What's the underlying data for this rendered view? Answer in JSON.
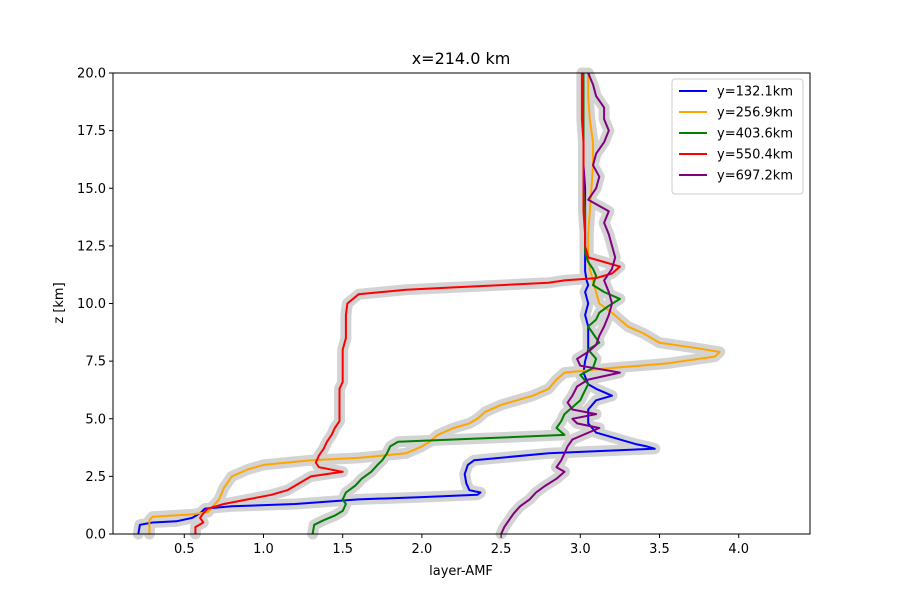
{
  "chart_data": {
    "type": "line",
    "title": "x=214.0 km",
    "xlabel": "layer-AMF",
    "ylabel": "z [km]",
    "xlim": [
      0.05,
      4.45
    ],
    "ylim": [
      0,
      20
    ],
    "xticks": [
      0.5,
      1.0,
      1.5,
      2.0,
      2.5,
      3.0,
      3.5,
      4.0
    ],
    "xtick_labels": [
      "0.5",
      "1.0",
      "1.5",
      "2.0",
      "2.5",
      "3.0",
      "3.5",
      "4.0"
    ],
    "yticks": [
      0,
      2.5,
      5,
      7.5,
      10,
      12.5,
      15,
      17.5,
      20
    ],
    "ytick_labels": [
      "0.0",
      "2.5",
      "5.0",
      "7.5",
      "10.0",
      "12.5",
      "15.0",
      "17.5",
      "20.0"
    ],
    "grid": false,
    "legend_position": "top-right",
    "band_color": "#d3d3d3",
    "series": [
      {
        "name": "y=132.1km",
        "color": "#0000ff",
        "points": [
          [
            0.21,
            0
          ],
          [
            0.22,
            0.4
          ],
          [
            0.3,
            0.5
          ],
          [
            0.45,
            0.55
          ],
          [
            0.55,
            0.7
          ],
          [
            0.6,
            0.9
          ],
          [
            0.63,
            1.1
          ],
          [
            0.8,
            1.2
          ],
          [
            1.2,
            1.3
          ],
          [
            1.6,
            1.5
          ],
          [
            2.0,
            1.6
          ],
          [
            2.35,
            1.7
          ],
          [
            2.37,
            1.8
          ],
          [
            2.3,
            1.9
          ],
          [
            2.28,
            2.2
          ],
          [
            2.27,
            2.6
          ],
          [
            2.29,
            3.0
          ],
          [
            2.33,
            3.2
          ],
          [
            2.8,
            3.5
          ],
          [
            3.47,
            3.7
          ],
          [
            3.42,
            3.8
          ],
          [
            3.35,
            3.9
          ],
          [
            3.3,
            4.0
          ],
          [
            3.2,
            4.2
          ],
          [
            3.1,
            4.4
          ],
          [
            3.05,
            4.8
          ],
          [
            3.05,
            5.4
          ],
          [
            3.1,
            5.8
          ],
          [
            3.2,
            6.0
          ],
          [
            3.1,
            6.3
          ],
          [
            3.05,
            6.5
          ],
          [
            3.02,
            7.0
          ],
          [
            3.03,
            7.5
          ],
          [
            3.05,
            8.0
          ],
          [
            3.05,
            8.5
          ],
          [
            3.05,
            9.0
          ],
          [
            3.03,
            9.5
          ],
          [
            3.05,
            10.0
          ],
          [
            3.03,
            10.5
          ],
          [
            3.05,
            10.8
          ],
          [
            3.04,
            11.0
          ],
          [
            3.03,
            11.4
          ],
          [
            3.03,
            12.0
          ],
          [
            3.03,
            13.0
          ],
          [
            3.03,
            14.0
          ],
          [
            3.03,
            15.0
          ],
          [
            3.02,
            16.0
          ],
          [
            3.02,
            17.0
          ],
          [
            3.02,
            18.0
          ],
          [
            3.02,
            19.0
          ],
          [
            3.02,
            20.0
          ]
        ]
      },
      {
        "name": "y=256.9km",
        "color": "#ffa500",
        "points": [
          [
            0.28,
            0
          ],
          [
            0.28,
            0.6
          ],
          [
            0.3,
            0.75
          ],
          [
            0.55,
            0.85
          ],
          [
            0.65,
            0.95
          ],
          [
            0.68,
            1.2
          ],
          [
            0.72,
            1.5
          ],
          [
            0.75,
            2.0
          ],
          [
            0.8,
            2.5
          ],
          [
            0.9,
            2.8
          ],
          [
            1.0,
            3.0
          ],
          [
            1.3,
            3.2
          ],
          [
            1.6,
            3.3
          ],
          [
            1.9,
            3.5
          ],
          [
            2.0,
            3.8
          ],
          [
            2.05,
            4.0
          ],
          [
            2.1,
            4.3
          ],
          [
            2.2,
            4.6
          ],
          [
            2.3,
            4.8
          ],
          [
            2.35,
            5.0
          ],
          [
            2.4,
            5.3
          ],
          [
            2.5,
            5.6
          ],
          [
            2.6,
            5.8
          ],
          [
            2.7,
            6.0
          ],
          [
            2.8,
            6.3
          ],
          [
            2.85,
            6.7
          ],
          [
            2.9,
            7.0
          ],
          [
            3.2,
            7.2
          ],
          [
            3.55,
            7.4
          ],
          [
            3.85,
            7.7
          ],
          [
            3.88,
            7.9
          ],
          [
            3.7,
            8.1
          ],
          [
            3.5,
            8.3
          ],
          [
            3.4,
            8.7
          ],
          [
            3.3,
            9.0
          ],
          [
            3.25,
            9.3
          ],
          [
            3.2,
            9.6
          ],
          [
            3.12,
            10.0
          ],
          [
            3.1,
            10.5
          ],
          [
            3.08,
            11.0
          ],
          [
            3.06,
            11.5
          ],
          [
            3.05,
            12.0
          ],
          [
            3.05,
            13.0
          ],
          [
            3.06,
            14.0
          ],
          [
            3.07,
            15.0
          ],
          [
            3.08,
            16.0
          ],
          [
            3.08,
            17.0
          ],
          [
            3.06,
            18.0
          ],
          [
            3.05,
            19.0
          ],
          [
            3.05,
            20.0
          ]
        ]
      },
      {
        "name": "y=403.6km",
        "color": "#008000",
        "points": [
          [
            1.31,
            0
          ],
          [
            1.32,
            0.4
          ],
          [
            1.38,
            0.6
          ],
          [
            1.45,
            0.8
          ],
          [
            1.5,
            1.0
          ],
          [
            1.52,
            1.3
          ],
          [
            1.5,
            1.5
          ],
          [
            1.52,
            1.8
          ],
          [
            1.58,
            2.1
          ],
          [
            1.62,
            2.4
          ],
          [
            1.68,
            2.7
          ],
          [
            1.72,
            3.0
          ],
          [
            1.75,
            3.2
          ],
          [
            1.78,
            3.5
          ],
          [
            1.8,
            3.8
          ],
          [
            1.85,
            4.0
          ],
          [
            2.2,
            4.1
          ],
          [
            2.9,
            4.3
          ],
          [
            2.85,
            4.6
          ],
          [
            2.88,
            4.9
          ],
          [
            2.9,
            5.2
          ],
          [
            2.95,
            5.5
          ],
          [
            3.0,
            5.8
          ],
          [
            3.02,
            6.1
          ],
          [
            3.05,
            6.5
          ],
          [
            3.0,
            6.9
          ],
          [
            3.08,
            7.2
          ],
          [
            3.1,
            7.6
          ],
          [
            3.05,
            8.0
          ],
          [
            3.12,
            8.3
          ],
          [
            3.08,
            8.7
          ],
          [
            3.05,
            9.0
          ],
          [
            3.1,
            9.3
          ],
          [
            3.12,
            9.6
          ],
          [
            3.18,
            9.9
          ],
          [
            3.25,
            10.2
          ],
          [
            3.15,
            10.5
          ],
          [
            3.08,
            10.8
          ],
          [
            3.1,
            11.2
          ],
          [
            3.08,
            11.5
          ],
          [
            3.05,
            11.8
          ],
          [
            3.03,
            12.2
          ],
          [
            3.03,
            13.0
          ],
          [
            3.03,
            14.0
          ],
          [
            3.02,
            15.0
          ],
          [
            3.02,
            16.0
          ],
          [
            3.02,
            17.0
          ],
          [
            3.02,
            18.0
          ],
          [
            3.02,
            19.0
          ],
          [
            3.02,
            20.0
          ]
        ]
      },
      {
        "name": "y=550.4km",
        "color": "#ff0000",
        "points": [
          [
            0.57,
            0
          ],
          [
            0.57,
            0.3
          ],
          [
            0.62,
            0.5
          ],
          [
            0.6,
            0.7
          ],
          [
            0.62,
            0.9
          ],
          [
            0.65,
            1.1
          ],
          [
            0.75,
            1.3
          ],
          [
            0.9,
            1.5
          ],
          [
            1.05,
            1.7
          ],
          [
            1.15,
            1.9
          ],
          [
            1.2,
            2.1
          ],
          [
            1.25,
            2.3
          ],
          [
            1.3,
            2.5
          ],
          [
            1.5,
            2.7
          ],
          [
            1.35,
            2.9
          ],
          [
            1.33,
            3.1
          ],
          [
            1.35,
            3.4
          ],
          [
            1.38,
            3.7
          ],
          [
            1.4,
            4.0
          ],
          [
            1.43,
            4.3
          ],
          [
            1.45,
            4.6
          ],
          [
            1.48,
            4.9
          ],
          [
            1.48,
            5.3
          ],
          [
            1.48,
            5.7
          ],
          [
            1.48,
            6.0
          ],
          [
            1.48,
            6.3
          ],
          [
            1.5,
            6.6
          ],
          [
            1.5,
            7.0
          ],
          [
            1.5,
            7.5
          ],
          [
            1.5,
            8.0
          ],
          [
            1.52,
            8.5
          ],
          [
            1.52,
            9.0
          ],
          [
            1.52,
            9.5
          ],
          [
            1.53,
            10.0
          ],
          [
            1.6,
            10.4
          ],
          [
            1.9,
            10.6
          ],
          [
            2.2,
            10.7
          ],
          [
            2.5,
            10.8
          ],
          [
            2.8,
            10.9
          ],
          [
            2.9,
            11.0
          ],
          [
            3.1,
            11.1
          ],
          [
            3.2,
            11.3
          ],
          [
            3.25,
            11.6
          ],
          [
            3.15,
            11.8
          ],
          [
            3.05,
            12.0
          ],
          [
            3.03,
            12.5
          ],
          [
            3.03,
            13.0
          ],
          [
            3.02,
            14.0
          ],
          [
            3.02,
            15.0
          ],
          [
            3.02,
            16.0
          ],
          [
            3.02,
            17.0
          ],
          [
            3.01,
            18.0
          ],
          [
            3.01,
            19.0
          ],
          [
            3.01,
            20.0
          ]
        ]
      },
      {
        "name": "y=697.2km",
        "color": "#800080",
        "points": [
          [
            2.5,
            0
          ],
          [
            2.52,
            0.3
          ],
          [
            2.55,
            0.6
          ],
          [
            2.58,
            0.9
          ],
          [
            2.62,
            1.2
          ],
          [
            2.68,
            1.5
          ],
          [
            2.72,
            1.8
          ],
          [
            2.78,
            2.1
          ],
          [
            2.85,
            2.4
          ],
          [
            2.9,
            2.7
          ],
          [
            2.85,
            2.9
          ],
          [
            2.88,
            3.2
          ],
          [
            2.9,
            3.5
          ],
          [
            2.92,
            3.8
          ],
          [
            2.95,
            4.1
          ],
          [
            3.12,
            4.6
          ],
          [
            2.98,
            4.8
          ],
          [
            2.95,
            5.0
          ],
          [
            3.1,
            5.2
          ],
          [
            2.95,
            5.4
          ],
          [
            2.92,
            5.7
          ],
          [
            2.95,
            6.0
          ],
          [
            2.98,
            6.4
          ],
          [
            3.05,
            6.7
          ],
          [
            3.25,
            7.0
          ],
          [
            3.0,
            7.3
          ],
          [
            2.98,
            7.6
          ],
          [
            3.05,
            7.9
          ],
          [
            3.1,
            8.2
          ],
          [
            3.12,
            8.6
          ],
          [
            3.15,
            9.0
          ],
          [
            3.18,
            9.5
          ],
          [
            3.2,
            10.0
          ],
          [
            3.18,
            10.5
          ],
          [
            3.15,
            11.0
          ],
          [
            3.2,
            11.5
          ],
          [
            3.22,
            12.0
          ],
          [
            3.2,
            12.5
          ],
          [
            3.18,
            13.0
          ],
          [
            3.15,
            13.5
          ],
          [
            3.18,
            14.0
          ],
          [
            3.05,
            14.5
          ],
          [
            3.1,
            15.0
          ],
          [
            3.12,
            15.5
          ],
          [
            3.08,
            16.0
          ],
          [
            3.1,
            16.5
          ],
          [
            3.15,
            17.0
          ],
          [
            3.18,
            17.5
          ],
          [
            3.15,
            18.0
          ],
          [
            3.15,
            18.5
          ],
          [
            3.1,
            19.0
          ],
          [
            3.08,
            19.5
          ],
          [
            3.05,
            20.0
          ]
        ]
      }
    ]
  }
}
